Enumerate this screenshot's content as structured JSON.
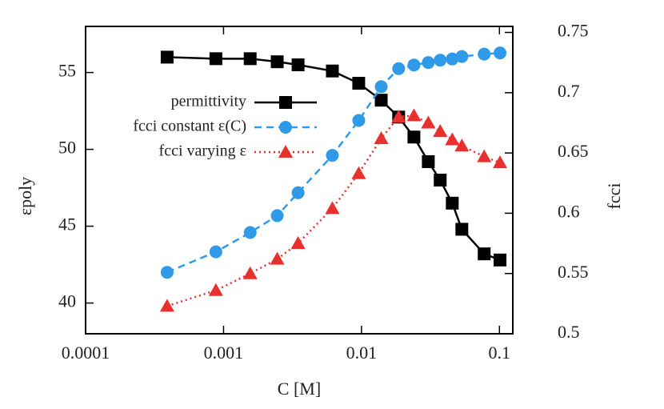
{
  "chart_data": {
    "type": "line",
    "xlabel": "C [M]",
    "ylabel": "εpoly",
    "y2label": "fcci",
    "xscale": "log",
    "xlim": [
      0.0001,
      0.125
    ],
    "xticks": [
      0.0001,
      0.001,
      0.01,
      0.1
    ],
    "ylim": [
      38,
      58
    ],
    "yticks": [
      40,
      45,
      50,
      55
    ],
    "y2lim": [
      0.5,
      0.755
    ],
    "y2ticks": [
      0.5,
      0.55,
      0.6,
      0.65,
      0.7,
      0.75
    ],
    "legend": "upper left",
    "x": [
      0.00039,
      0.00088,
      0.00156,
      0.00245,
      0.00347,
      0.00615,
      0.00955,
      0.0139,
      0.0186,
      0.024,
      0.0305,
      0.0372,
      0.0455,
      0.0534,
      0.0775,
      0.101
    ],
    "series": [
      {
        "name": "permittivity",
        "color": "#000000",
        "marker": "square",
        "linestyle": "solid",
        "values": [
          56.0,
          55.9,
          55.9,
          55.7,
          55.5,
          55.1,
          54.3,
          53.2,
          52.1,
          50.8,
          49.2,
          48.0,
          46.5,
          44.8,
          43.2,
          42.8
        ]
      },
      {
        "name": "fcci constant ε(C)",
        "color": "#2f9be8",
        "marker": "circle",
        "linestyle": "dashed",
        "axis": "y2",
        "values": [
          0.551,
          0.568,
          0.584,
          0.598,
          0.617,
          0.648,
          0.677,
          0.705,
          0.72,
          0.723,
          0.725,
          0.727,
          0.728,
          0.73,
          0.732,
          0.733
        ]
      },
      {
        "name": "fcci varying ε",
        "color": "#e8312f",
        "marker": "triangle",
        "linestyle": "dotted",
        "axis": "y2",
        "values": [
          0.523,
          0.536,
          0.55,
          0.562,
          0.575,
          0.604,
          0.633,
          0.662,
          0.68,
          0.681,
          0.675,
          0.668,
          0.661,
          0.656,
          0.647,
          0.642
        ]
      }
    ]
  }
}
